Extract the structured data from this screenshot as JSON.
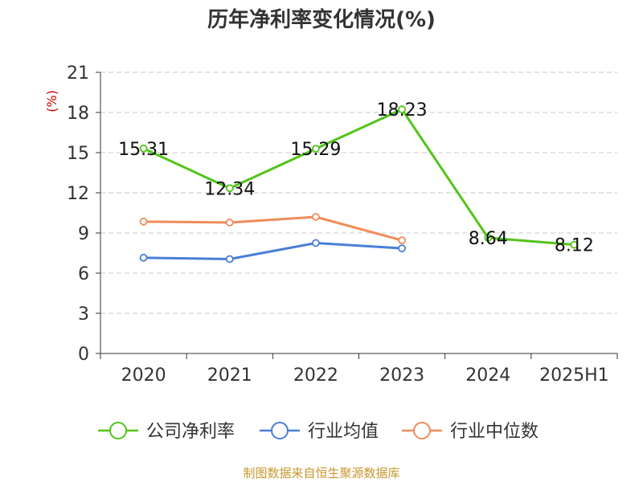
{
  "chart_data": {
    "type": "line",
    "title": "历年净利率变化情况(%)",
    "ylabel": "(%)",
    "xlabel": "",
    "categories": [
      "2020",
      "2021",
      "2022",
      "2023",
      "2024",
      "2025H1"
    ],
    "ylim": [
      0,
      21
    ],
    "yticks": [
      0,
      3,
      6,
      9,
      12,
      15,
      18,
      21
    ],
    "grid": true,
    "legend_position": "bottom",
    "series": [
      {
        "name": "公司净利率",
        "color": "#52c41a",
        "values": [
          15.31,
          12.34,
          15.29,
          18.23,
          8.64,
          8.12
        ],
        "labels": [
          "15.31",
          "12.34",
          "15.29",
          "18.23",
          "8.64",
          "8.12"
        ]
      },
      {
        "name": "行业均值",
        "color": "#4a7fd8",
        "values": [
          7.15,
          7.05,
          8.25,
          7.85,
          null,
          null
        ]
      },
      {
        "name": "行业中位数",
        "color": "#f08c5a",
        "values": [
          9.85,
          9.78,
          10.2,
          8.45,
          null,
          null
        ]
      }
    ]
  },
  "footer": {
    "source": "制图数据来自恒生聚源数据库"
  }
}
